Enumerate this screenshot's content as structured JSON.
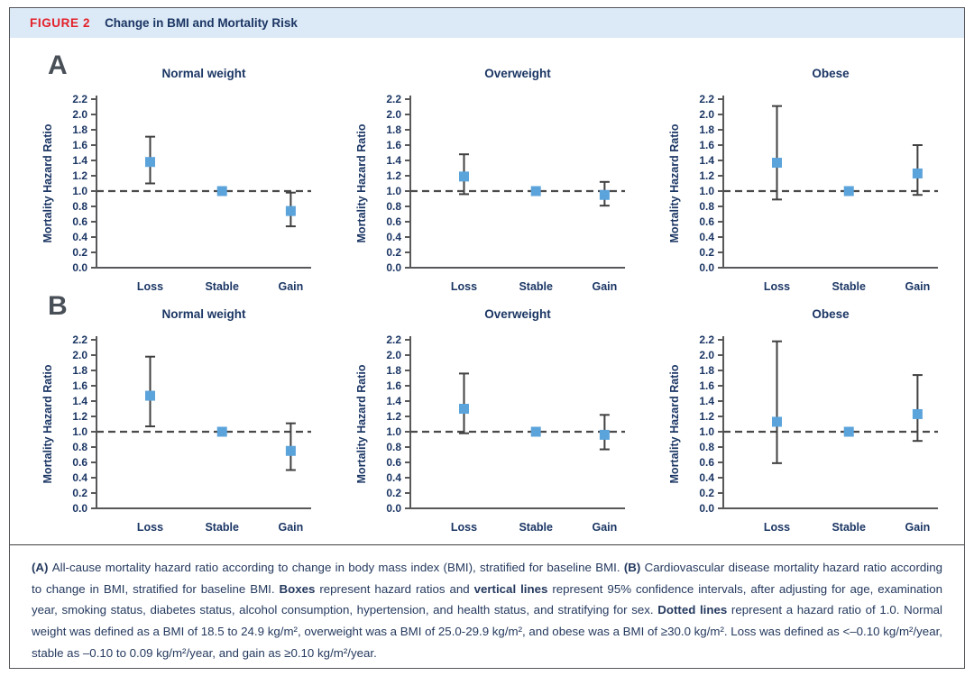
{
  "header": {
    "figure_label": "FIGURE 2",
    "title": "Change in BMI and Mortality Risk"
  },
  "panels": {
    "a": {
      "label": "A"
    },
    "b": {
      "label": "B"
    }
  },
  "colors": {
    "navy": "#1b3664",
    "red": "#e32129",
    "header_bg": "#dce9f6",
    "marker": "#5ba3db",
    "error": "#404040",
    "axis": "#58585a",
    "refline": "#4a4a4a",
    "panel_letter": "#494f57",
    "caption": "#24395e",
    "border": "#55565a"
  },
  "chart_data": [
    {
      "type": "scatter",
      "panel": "A",
      "title": "Normal weight",
      "ylabel": "Mortality Hazard Ratio",
      "ylim": [
        0,
        2.2
      ],
      "ytick_step": 0.2,
      "refline": 1.0,
      "grid": false,
      "legend": "none",
      "categories": [
        "Loss",
        "Stable",
        "Gain"
      ],
      "values": [
        1.38,
        1.0,
        0.74
      ],
      "ci_low": [
        1.1,
        null,
        0.54
      ],
      "ci_high": [
        1.71,
        null,
        0.98
      ]
    },
    {
      "type": "scatter",
      "panel": "A",
      "title": "Overweight",
      "ylabel": "Mortality Hazard Ratio",
      "ylim": [
        0,
        2.2
      ],
      "ytick_step": 0.2,
      "refline": 1.0,
      "grid": false,
      "legend": "none",
      "categories": [
        "Loss",
        "Stable",
        "Gain"
      ],
      "values": [
        1.19,
        1.0,
        0.95
      ],
      "ci_low": [
        0.96,
        null,
        0.81
      ],
      "ci_high": [
        1.48,
        null,
        1.12
      ]
    },
    {
      "type": "scatter",
      "panel": "A",
      "title": "Obese",
      "ylabel": "Mortality Hazard Ratio",
      "ylim": [
        0,
        2.2
      ],
      "ytick_step": 0.2,
      "refline": 1.0,
      "grid": false,
      "legend": "none",
      "categories": [
        "Loss",
        "Stable",
        "Gain"
      ],
      "values": [
        1.37,
        1.0,
        1.23
      ],
      "ci_low": [
        0.89,
        null,
        0.95
      ],
      "ci_high": [
        2.11,
        null,
        1.6
      ]
    },
    {
      "type": "scatter",
      "panel": "B",
      "title": "Normal weight",
      "ylabel": "Mortality Hazard Ratio",
      "ylim": [
        0,
        2.2
      ],
      "ytick_step": 0.2,
      "refline": 1.0,
      "grid": false,
      "legend": "none",
      "categories": [
        "Loss",
        "Stable",
        "Gain"
      ],
      "values": [
        1.47,
        1.0,
        0.75
      ],
      "ci_low": [
        1.07,
        null,
        0.5
      ],
      "ci_high": [
        1.98,
        null,
        1.11
      ]
    },
    {
      "type": "scatter",
      "panel": "B",
      "title": "Overweight",
      "ylabel": "Mortality Hazard Ratio",
      "ylim": [
        0,
        2.2
      ],
      "ytick_step": 0.2,
      "refline": 1.0,
      "grid": false,
      "legend": "none",
      "categories": [
        "Loss",
        "Stable",
        "Gain"
      ],
      "values": [
        1.3,
        1.0,
        0.96
      ],
      "ci_low": [
        0.98,
        null,
        0.77
      ],
      "ci_high": [
        1.76,
        null,
        1.22
      ]
    },
    {
      "type": "scatter",
      "panel": "B",
      "title": "Obese",
      "ylabel": "Mortality Hazard Ratio",
      "ylim": [
        0,
        2.2
      ],
      "ytick_step": 0.2,
      "refline": 1.0,
      "grid": false,
      "legend": "none",
      "categories": [
        "Loss",
        "Stable",
        "Gain"
      ],
      "values": [
        1.13,
        1.0,
        1.23
      ],
      "ci_low": [
        0.59,
        null,
        0.88
      ],
      "ci_high": [
        2.18,
        null,
        1.74
      ]
    }
  ],
  "caption": {
    "segments": [
      {
        "bold": true,
        "text": "(A) "
      },
      {
        "bold": false,
        "text": "All-cause mortality hazard ratio according to change in body mass index (BMI), stratified for baseline BMI. "
      },
      {
        "bold": true,
        "text": "(B) "
      },
      {
        "bold": false,
        "text": "Cardiovascular disease mortality hazard ratio according to change in BMI, stratified for baseline BMI. "
      },
      {
        "bold": true,
        "text": "Boxes"
      },
      {
        "bold": false,
        "text": " represent hazard ratios and "
      },
      {
        "bold": true,
        "text": "vertical lines"
      },
      {
        "bold": false,
        "text": " represent 95% confidence intervals, after adjusting for age, examination year, smoking status, diabetes status, alcohol consumption, hypertension, and health status, and stratifying for sex. "
      },
      {
        "bold": true,
        "text": "Dotted lines"
      },
      {
        "bold": false,
        "text": " represent a hazard ratio of 1.0. Normal weight was defined as a BMI of 18.5 to 24.9 kg/m², overweight was a BMI of 25.0-29.9 kg/m², and obese was a BMI of ≥30.0 kg/m². Loss was defined as <–0.10 kg/m²/year, stable as –0.10 to 0.09 kg/m²/year, and gain as ≥0.10 kg/m²/year."
      }
    ]
  }
}
